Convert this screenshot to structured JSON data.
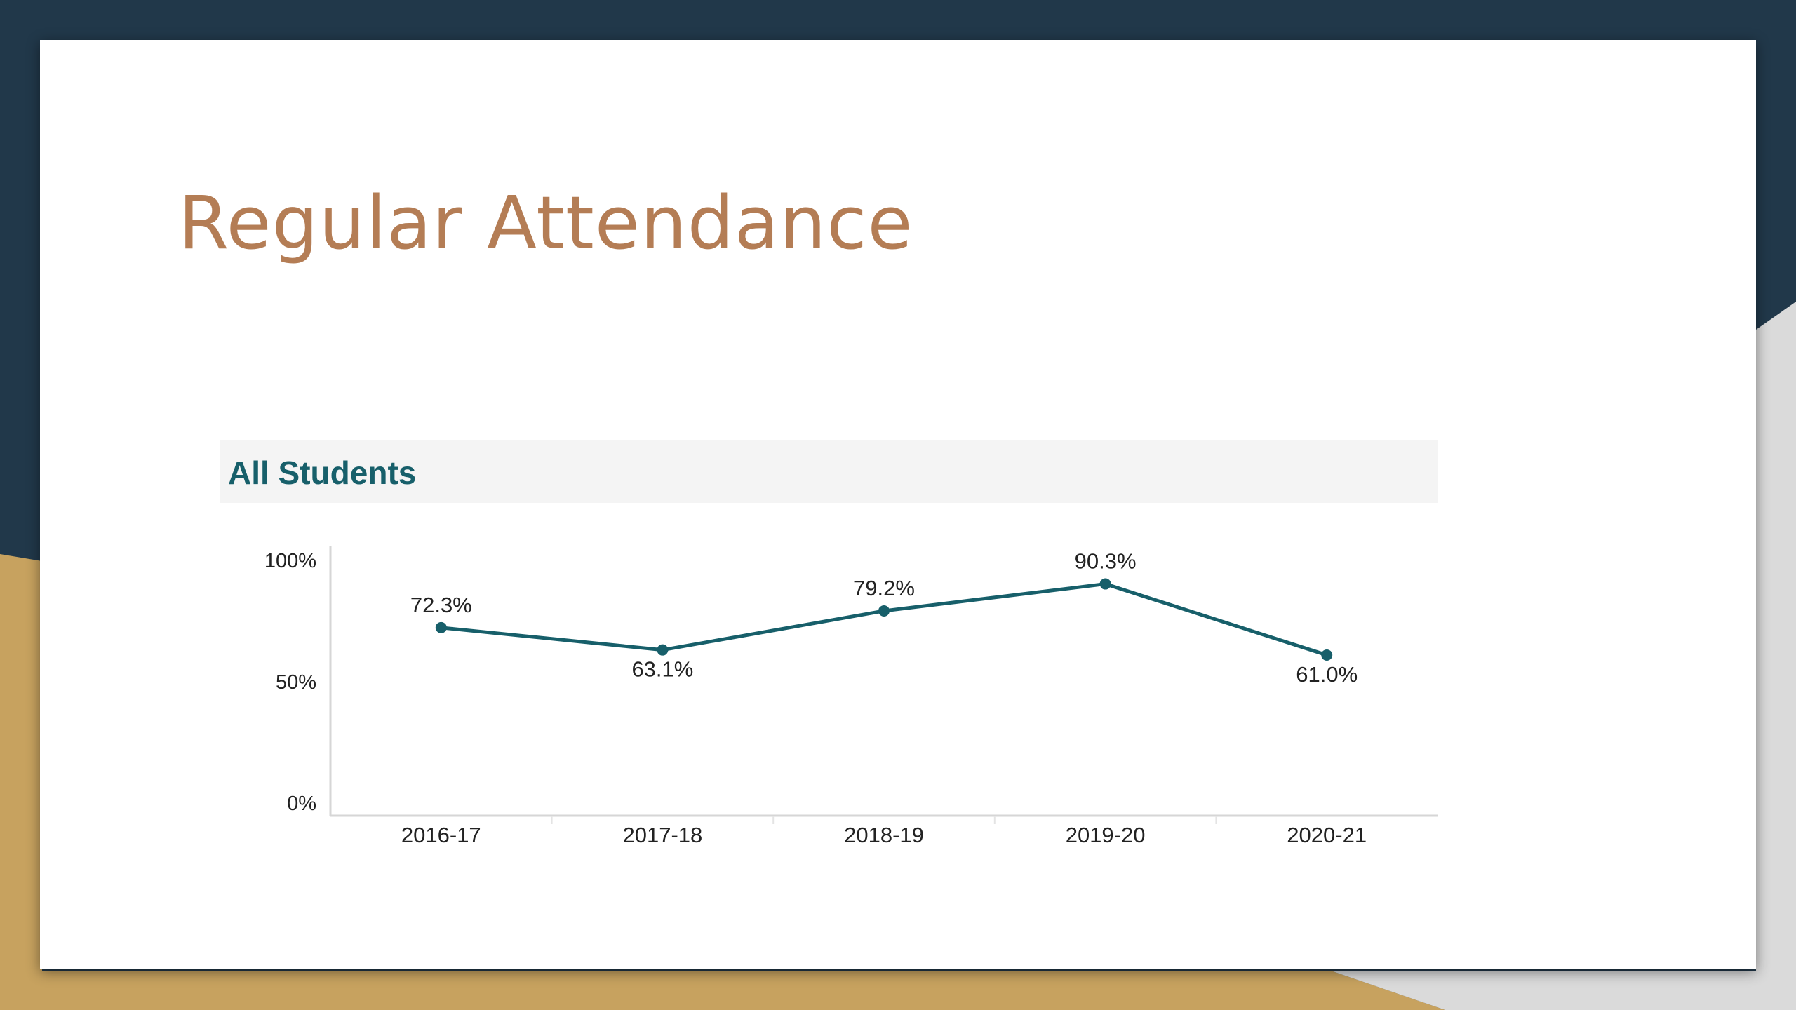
{
  "slide": {
    "title": "Regular Attendance"
  },
  "colors": {
    "background_dark": "#21384a",
    "background_gold": "#c7a25f",
    "background_grey": "#dadada",
    "title": "#b47d55",
    "series": "#175f6a",
    "header_band": "#f4f4f4"
  },
  "chart_data": {
    "type": "line",
    "title": "All Students",
    "categories": [
      "2016-17",
      "2017-18",
      "2018-19",
      "2019-20",
      "2020-21"
    ],
    "series": [
      {
        "values": [
          72.3,
          63.1,
          79.2,
          90.3,
          61.0
        ],
        "labels": [
          "72.3%",
          "63.1%",
          "79.2%",
          "90.3%",
          "61.0%"
        ]
      }
    ],
    "yticks": [
      "100%",
      "50%",
      "0%"
    ],
    "ylim": [
      0,
      100
    ],
    "grid": false,
    "legend": "none"
  }
}
